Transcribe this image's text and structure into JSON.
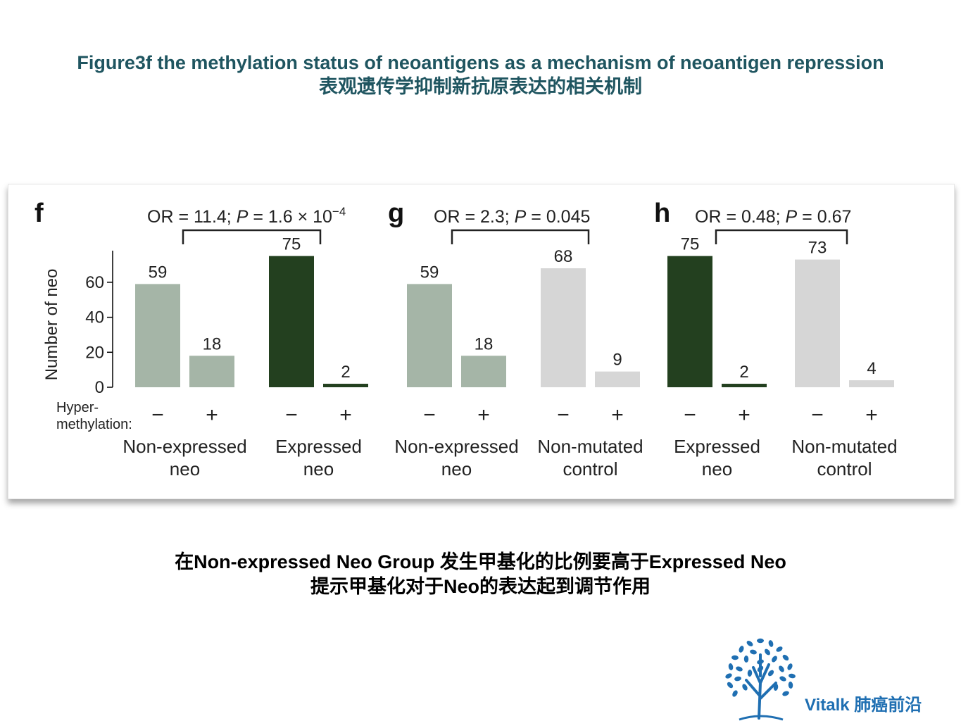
{
  "header": {
    "title_en": "Figure3f  the methylation status of neoantigens as a mechanism of neoantigen repression",
    "title_zh": "表观遗传学抑制新抗原表达的相关机制"
  },
  "caption": {
    "line1": "在Non-expressed Neo Group 发生甲基化的比例要高于Expressed  Neo",
    "line2": "提示甲基化对于Neo的表达起到调节作用"
  },
  "logo": {
    "text": "Vitalk 肺癌前沿",
    "icon": "tree-icon",
    "color": "#1f6fb2"
  },
  "chart_data": {
    "type": "bar",
    "ylabel": "Number of neo",
    "y_ticks": [
      0,
      20,
      40,
      60
    ],
    "ylim": [
      0,
      75
    ],
    "row_label": "Hyper-\nmethylation:",
    "panels": [
      {
        "letter": "f",
        "stat": {
          "or_text": "OR = 11.4; ",
          "p_italic": "P",
          "p_text": " = 1.6 × 10",
          "p_exp": "−4"
        },
        "groups": [
          {
            "label_line1": "Non-expressed",
            "label_line2": "neo",
            "color": "#a5b5a7",
            "bars": [
              {
                "sign": "−",
                "value": 59
              },
              {
                "sign": "+",
                "value": 18
              }
            ]
          },
          {
            "label_line1": "Expressed",
            "label_line2": "neo",
            "color": "#23401f",
            "bars": [
              {
                "sign": "−",
                "value": 75
              },
              {
                "sign": "+",
                "value": 2
              }
            ]
          }
        ]
      },
      {
        "letter": "g",
        "stat": {
          "or_text": "OR = 2.3; ",
          "p_italic": "P",
          "p_text": " = 0.045",
          "p_exp": ""
        },
        "groups": [
          {
            "label_line1": "Non-expressed",
            "label_line2": "neo",
            "color": "#a5b5a7",
            "bars": [
              {
                "sign": "−",
                "value": 59
              },
              {
                "sign": "+",
                "value": 18
              }
            ]
          },
          {
            "label_line1": "Non-mutated",
            "label_line2": "control",
            "color": "#d6d6d6",
            "bars": [
              {
                "sign": "−",
                "value": 68
              },
              {
                "sign": "+",
                "value": 9
              }
            ]
          }
        ]
      },
      {
        "letter": "h",
        "stat": {
          "or_text": "OR = 0.48; ",
          "p_italic": "P",
          "p_text": " = 0.67",
          "p_exp": ""
        },
        "groups": [
          {
            "label_line1": "Expressed",
            "label_line2": "neo",
            "color": "#23401f",
            "bars": [
              {
                "sign": "−",
                "value": 75
              },
              {
                "sign": "+",
                "value": 2
              }
            ]
          },
          {
            "label_line1": "Non-mutated",
            "label_line2": "control",
            "color": "#d6d6d6",
            "bars": [
              {
                "sign": "−",
                "value": 73
              },
              {
                "sign": "+",
                "value": 4
              }
            ]
          }
        ]
      }
    ]
  }
}
